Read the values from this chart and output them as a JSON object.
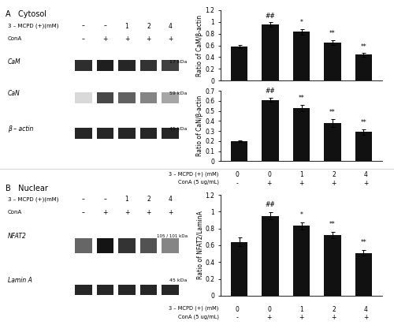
{
  "cam_values": [
    0.58,
    0.95,
    0.83,
    0.65,
    0.44
  ],
  "cam_errors": [
    0.03,
    0.04,
    0.05,
    0.04,
    0.03
  ],
  "cam_annotations": [
    "",
    "##",
    "*",
    "**",
    "**"
  ],
  "cam_ylim": [
    0,
    1.2
  ],
  "cam_yticks": [
    0,
    0.2,
    0.4,
    0.6,
    0.8,
    1.0,
    1.2
  ],
  "cam_ylabel": "Ratio of CaM/β-actin",
  "can_values": [
    0.2,
    0.61,
    0.53,
    0.38,
    0.29
  ],
  "can_errors": [
    0.01,
    0.02,
    0.03,
    0.04,
    0.03
  ],
  "can_annotations": [
    "",
    "##",
    "**",
    "**",
    "**"
  ],
  "can_ylim": [
    0,
    0.7
  ],
  "can_yticks": [
    0,
    0.1,
    0.2,
    0.3,
    0.4,
    0.5,
    0.6,
    0.7
  ],
  "can_ylabel": "Ratio of CaN/β-actin",
  "nfat_values": [
    0.64,
    0.95,
    0.83,
    0.72,
    0.51
  ],
  "nfat_errors": [
    0.05,
    0.04,
    0.04,
    0.04,
    0.03
  ],
  "nfat_annotations": [
    "",
    "##",
    "*",
    "**",
    "**"
  ],
  "nfat_ylim": [
    0,
    1.2
  ],
  "nfat_yticks": [
    0,
    0.2,
    0.4,
    0.6,
    0.8,
    1.0,
    1.2
  ],
  "nfat_ylabel": "Ratio of NFAT2/LaminA",
  "x_labels_mcpd": [
    "0",
    "0",
    "1",
    "2",
    "4"
  ],
  "x_labels_cona": [
    "-",
    "+",
    "+",
    "+",
    "+"
  ],
  "x_label_mcpd": "3 – MCPD (+) (mM)",
  "x_label_cona": "ConA (5 ug/mL)",
  "bar_color": "#111111",
  "bar_width": 0.55,
  "panel_a_label": "A   Cytosol",
  "panel_b_label": "B   Nuclear",
  "cam_band_intensities": [
    0.82,
    0.88,
    0.85,
    0.8,
    0.75
  ],
  "can_band_intensities": [
    0.15,
    0.72,
    0.62,
    0.48,
    0.35
  ],
  "ba_band_intensities": [
    0.85,
    0.85,
    0.85,
    0.85,
    0.85
  ],
  "nfat_band_intensities": [
    0.6,
    0.92,
    0.8,
    0.68,
    0.48
  ],
  "lamin_band_intensities": [
    0.85,
    0.85,
    0.85,
    0.85,
    0.85
  ]
}
